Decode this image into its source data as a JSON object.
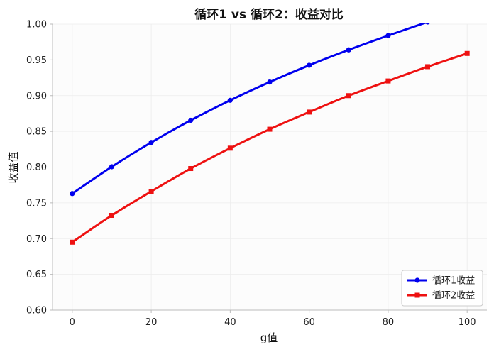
{
  "chart_data": {
    "type": "line",
    "title": "循环1 vs 循环2：收益对比",
    "xlabel": "g值",
    "ylabel": "收益值",
    "xlim": [
      -5,
      105
    ],
    "ylim": [
      0.6,
      1.0
    ],
    "xticks": [
      0,
      20,
      40,
      60,
      80,
      100
    ],
    "yticks": [
      0.6,
      0.65,
      0.7,
      0.75,
      0.8,
      0.85,
      0.9,
      0.95,
      1.0
    ],
    "grid": true,
    "legend_position": "lower-right",
    "series": [
      {
        "name": "循环1收益",
        "color": "#0000ee",
        "marker": "circle",
        "x": [
          0,
          10,
          20,
          30,
          40,
          50,
          60,
          70,
          80,
          90
        ],
        "y": [
          0.763,
          0.8005,
          0.8345,
          0.8655,
          0.8935,
          0.919,
          0.9425,
          0.964,
          0.984,
          1.003
        ]
      },
      {
        "name": "循环2收益",
        "color": "#ee1111",
        "marker": "square",
        "x": [
          0,
          10,
          20,
          30,
          40,
          50,
          60,
          70,
          80,
          90,
          100
        ],
        "y": [
          0.695,
          0.7325,
          0.766,
          0.798,
          0.8265,
          0.853,
          0.877,
          0.9,
          0.9205,
          0.9405,
          0.959
        ]
      }
    ]
  }
}
